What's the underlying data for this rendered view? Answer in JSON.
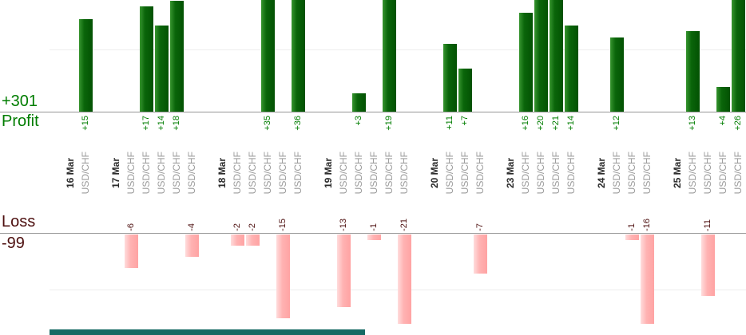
{
  "chart_data": {
    "type": "bar",
    "title": "",
    "xlabel": "",
    "ylabel": "",
    "legend": "none",
    "grid": "faint horizontal gridlines at mid-height of each panel",
    "panels": [
      {
        "id": "profit",
        "caption": "Profit",
        "total": "+301",
        "note": "green bars grow up from upper axis; bars larger than +18 are clipped at the top edge"
      },
      {
        "id": "loss",
        "caption": "Loss",
        "total": "-99",
        "note": "pink bars grow down from lower axis; -21 bar is clipped at panel bottom"
      }
    ],
    "x_groups": [
      {
        "date": "16 Mar",
        "trades": [
          {
            "symbol": "USD/CHF",
            "value": 15
          }
        ]
      },
      {
        "date": "17 Mar",
        "trades": [
          {
            "symbol": "USD/CHF",
            "value": -6
          },
          {
            "symbol": "USD/CHF",
            "value": 17
          },
          {
            "symbol": "USD/CHF",
            "value": 14
          },
          {
            "symbol": "USD/CHF",
            "value": 18
          },
          {
            "symbol": "USD/CHF",
            "value": -4
          }
        ]
      },
      {
        "date": "18 Mar",
        "trades": [
          {
            "symbol": "USD/CHF",
            "value": -2
          },
          {
            "symbol": "USD/CHF",
            "value": -2
          },
          {
            "symbol": "USD/CHF",
            "value": 35
          },
          {
            "symbol": "USD/CHF",
            "value": -15
          },
          {
            "symbol": "USD/CHF",
            "value": 36
          }
        ]
      },
      {
        "date": "19 Mar",
        "trades": [
          {
            "symbol": "USD/CHF",
            "value": -13
          },
          {
            "symbol": "USD/CHF",
            "value": 3
          },
          {
            "symbol": "USD/CHF",
            "value": -1
          },
          {
            "symbol": "USD/CHF",
            "value": 19
          },
          {
            "symbol": "USD/CHF",
            "value": -21
          }
        ]
      },
      {
        "date": "20 Mar",
        "trades": [
          {
            "symbol": "USD/CHF",
            "value": 11
          },
          {
            "symbol": "USD/CHF",
            "value": 7
          },
          {
            "symbol": "USD/CHF",
            "value": -7
          }
        ]
      },
      {
        "date": "23 Mar",
        "trades": [
          {
            "symbol": "USD/CHF",
            "value": 16
          },
          {
            "symbol": "USD/CHF",
            "value": 20
          },
          {
            "symbol": "USD/CHF",
            "value": 21
          },
          {
            "symbol": "USD/CHF",
            "value": 14
          }
        ]
      },
      {
        "date": "24 Mar",
        "trades": [
          {
            "symbol": "USD/CHF",
            "value": 12
          },
          {
            "symbol": "USD/CHF",
            "value": -1
          },
          {
            "symbol": "USD/CHF",
            "value": -16
          }
        ]
      },
      {
        "date": "25 Mar",
        "trades": [
          {
            "symbol": "USD/CHF",
            "value": 13
          },
          {
            "symbol": "USD/CHF",
            "value": -11
          },
          {
            "symbol": "USD/CHF",
            "value": 4
          },
          {
            "symbol": "USD/CHF",
            "value": 26
          }
        ]
      }
    ]
  },
  "axis_labels": {
    "profit_total": "+301",
    "profit_caption": "Profit",
    "loss_caption": "Loss",
    "loss_total": "-99"
  },
  "colors": {
    "profit_bar_light": "#37952f",
    "profit_bar_mid": "#0a650a",
    "profit_bar_dark": "#035203",
    "profit_text": "#007d00",
    "loss_bar_light": "#ffdcdc",
    "loss_bar_mid": "#ffb2b2",
    "loss_bar_dark": "#ffa3a3",
    "loss_text": "#4d0f0f",
    "date_text": "#2b2b2b",
    "symbol_text": "#9b9b9b",
    "axis_line": "#969696",
    "gridline": "#eeeeee",
    "bottom_partial_bar": "#166a64"
  }
}
